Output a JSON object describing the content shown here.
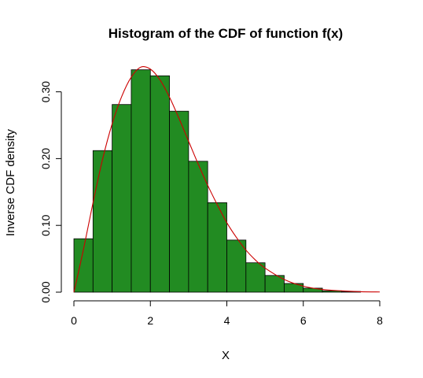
{
  "chart_data": {
    "type": "bar",
    "title": "Histogram of the CDF of function f(x)",
    "xlabel": "X",
    "ylabel": "Inverse CDF density",
    "xlim": [
      0,
      8
    ],
    "ylim": [
      0,
      0.33
    ],
    "x_ticks": [
      "0",
      "2",
      "4",
      "6",
      "8"
    ],
    "y_ticks": [
      "0.00",
      "0.10",
      "0.20",
      "0.30"
    ],
    "grid": false,
    "legend": "none",
    "bin_width": 0.5,
    "bins": [
      {
        "start": 0.0,
        "end": 0.5,
        "density": 0.08
      },
      {
        "start": 0.5,
        "end": 1.0,
        "density": 0.212
      },
      {
        "start": 1.0,
        "end": 1.5,
        "density": 0.281
      },
      {
        "start": 1.5,
        "end": 2.0,
        "density": 0.333
      },
      {
        "start": 2.0,
        "end": 2.5,
        "density": 0.324
      },
      {
        "start": 2.5,
        "end": 3.0,
        "density": 0.271
      },
      {
        "start": 3.0,
        "end": 3.5,
        "density": 0.196
      },
      {
        "start": 3.5,
        "end": 4.0,
        "density": 0.134
      },
      {
        "start": 4.0,
        "end": 4.5,
        "density": 0.078
      },
      {
        "start": 4.5,
        "end": 5.0,
        "density": 0.044
      },
      {
        "start": 5.0,
        "end": 5.5,
        "density": 0.025
      },
      {
        "start": 5.5,
        "end": 6.0,
        "density": 0.013
      },
      {
        "start": 6.0,
        "end": 6.5,
        "density": 0.006
      },
      {
        "start": 6.5,
        "end": 7.0,
        "density": 0.002
      },
      {
        "start": 7.0,
        "end": 7.5,
        "density": 0.001
      },
      {
        "start": 7.5,
        "end": 8.0,
        "density": 0.0
      }
    ],
    "curve": {
      "points": [
        [
          0.0,
          0.0
        ],
        [
          0.25,
          0.064
        ],
        [
          0.5,
          0.134
        ],
        [
          0.75,
          0.199
        ],
        [
          1.0,
          0.252
        ],
        [
          1.25,
          0.293
        ],
        [
          1.5,
          0.322
        ],
        [
          1.75,
          0.337
        ],
        [
          2.0,
          0.334
        ],
        [
          2.25,
          0.318
        ],
        [
          2.5,
          0.292
        ],
        [
          2.75,
          0.26
        ],
        [
          3.0,
          0.226
        ],
        [
          3.25,
          0.192
        ],
        [
          3.5,
          0.16
        ],
        [
          3.75,
          0.131
        ],
        [
          4.0,
          0.104
        ],
        [
          4.25,
          0.082
        ],
        [
          4.5,
          0.063
        ],
        [
          4.75,
          0.048
        ],
        [
          5.0,
          0.036
        ],
        [
          5.5,
          0.019
        ],
        [
          6.0,
          0.009
        ],
        [
          6.5,
          0.004
        ],
        [
          7.0,
          0.002
        ],
        [
          7.5,
          0.0007
        ],
        [
          8.0,
          0.0003
        ]
      ]
    },
    "colors": {
      "bar_fill": "#228B22",
      "bar_stroke": "#000000",
      "curve": "#CC0000",
      "axis": "#000000"
    }
  }
}
